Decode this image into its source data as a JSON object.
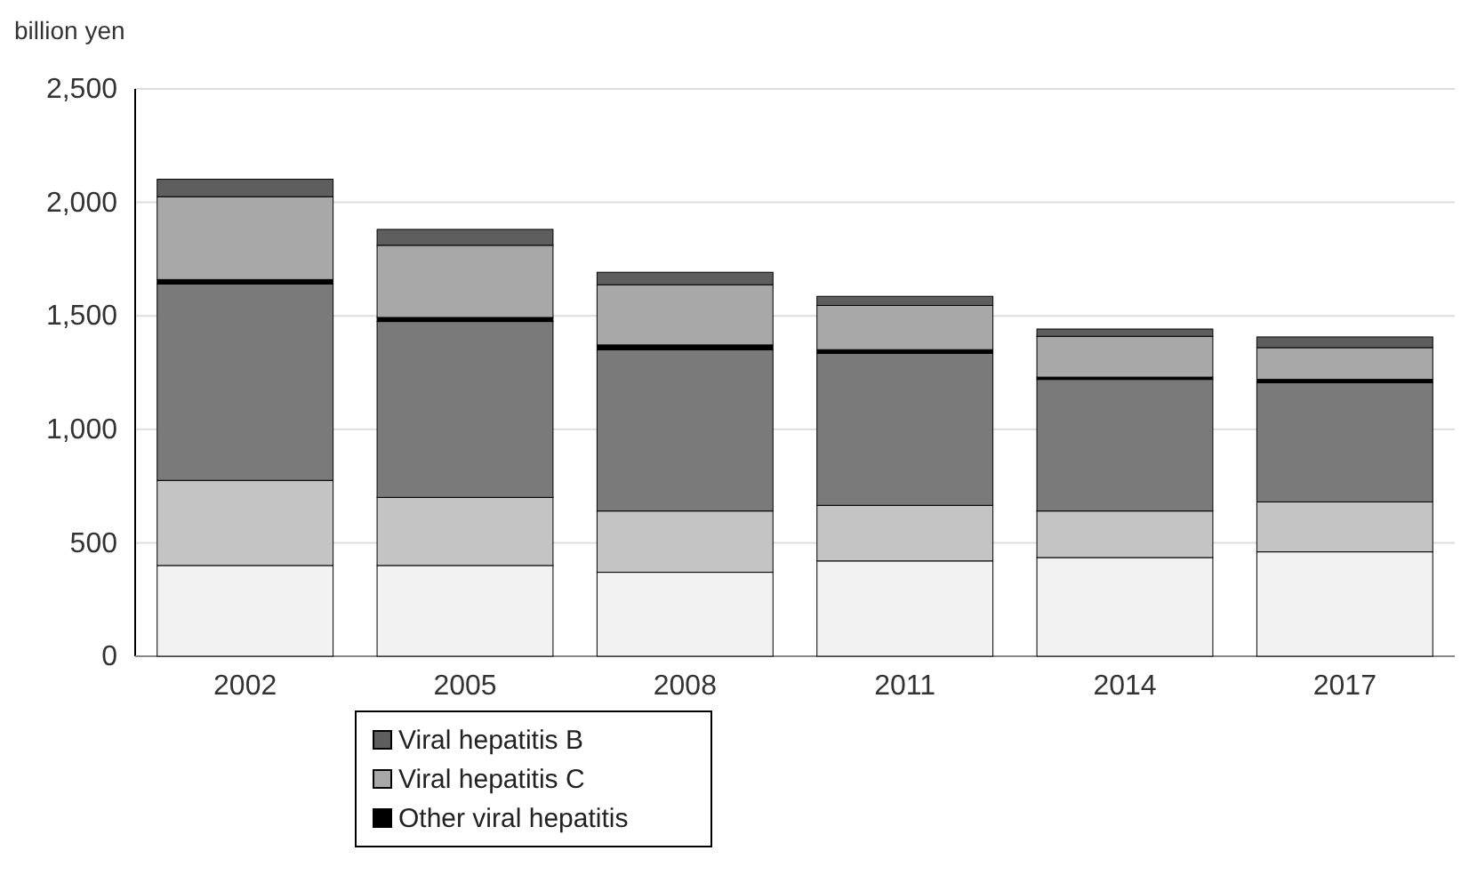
{
  "chart_data": {
    "type": "bar",
    "stacked": true,
    "ylabel": "billion yen",
    "categories": [
      "2002",
      "2005",
      "2008",
      "2011",
      "2014",
      "2017"
    ],
    "series": [
      {
        "color": "#f2f2f2",
        "values": [
          400,
          400,
          370,
          420,
          435,
          460
        ]
      },
      {
        "color": "#c4c4c4",
        "values": [
          375,
          300,
          270,
          245,
          205,
          220
        ]
      },
      {
        "color": "#7a7a7a",
        "values": [
          865,
          775,
          710,
          670,
          580,
          525
        ]
      },
      {
        "name": "Other viral hepatitis",
        "color": "#000000",
        "values": [
          20,
          18,
          22,
          16,
          10,
          15
        ]
      },
      {
        "name": "Viral hepatitis C",
        "color": "#a8a8a8",
        "values": [
          365,
          318,
          265,
          195,
          180,
          140
        ]
      },
      {
        "name": "Viral hepatitis B",
        "color": "#5e5e5e",
        "values": [
          77,
          70,
          55,
          40,
          32,
          47
        ]
      }
    ],
    "ylim": [
      0,
      2500
    ],
    "yticks": [
      0,
      500,
      {
        "value": 1000,
        "label": "1,000"
      },
      {
        "value": 1500,
        "label": "1,500"
      },
      {
        "value": 2000,
        "label": "2,000"
      },
      {
        "value": 2500,
        "label": "2,500"
      }
    ],
    "grid": "y",
    "legend": "bottom"
  }
}
